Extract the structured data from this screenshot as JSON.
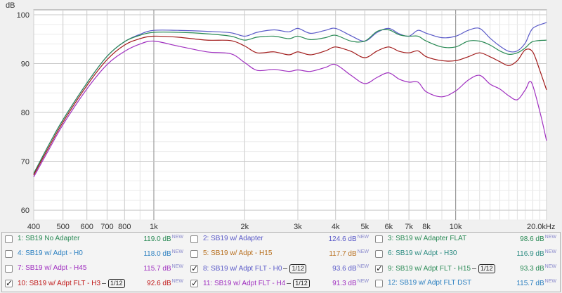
{
  "chart_data": {
    "type": "line",
    "ylabel": "dB",
    "xscale": "log",
    "xlim": [
      400,
      20000
    ],
    "ylim": [
      58,
      101
    ],
    "x_ticks": [
      400,
      500,
      600,
      700,
      800,
      1000,
      2000,
      3000,
      4000,
      5000,
      6000,
      7000,
      8000,
      10000,
      20000
    ],
    "x_tick_labels": [
      "400",
      "500",
      "600",
      "700",
      "800",
      "1k",
      "2k",
      "3k",
      "4k",
      "5k",
      "6k",
      "7k",
      "8k",
      "10k",
      "20.0kHz"
    ],
    "y_ticks": [
      60,
      70,
      80,
      90,
      100
    ],
    "y_tick_labels": [
      "60",
      "70",
      "80",
      "90",
      "100"
    ],
    "grid": true,
    "series": [
      {
        "name": "SB19 w/ Adapter",
        "color": "#5a5ac8",
        "points": [
          [
            400,
            67.5
          ],
          [
            450,
            73.5
          ],
          [
            500,
            78.5
          ],
          [
            600,
            86
          ],
          [
            700,
            91.5
          ],
          [
            800,
            94.5
          ],
          [
            900,
            96
          ],
          [
            1000,
            96.8
          ],
          [
            1200,
            96.8
          ],
          [
            1500,
            96.6
          ],
          [
            1800,
            96.3
          ],
          [
            2000,
            95.6
          ],
          [
            2200,
            96.4
          ],
          [
            2500,
            96.9
          ],
          [
            2800,
            96.5
          ],
          [
            3000,
            97.2
          ],
          [
            3300,
            96.2
          ],
          [
            3700,
            96.8
          ],
          [
            4000,
            97.2
          ],
          [
            4500,
            95.7
          ],
          [
            5000,
            94.6
          ],
          [
            5500,
            96.4
          ],
          [
            6000,
            97.2
          ],
          [
            6500,
            96.1
          ],
          [
            7000,
            95.6
          ],
          [
            7500,
            96.8
          ],
          [
            8000,
            96.2
          ],
          [
            9000,
            95.3
          ],
          [
            10000,
            95.6
          ],
          [
            11000,
            96.8
          ],
          [
            12000,
            97.2
          ],
          [
            13000,
            95.2
          ],
          [
            14000,
            93.6
          ],
          [
            15000,
            92.5
          ],
          [
            16000,
            92.6
          ],
          [
            17000,
            94.2
          ],
          [
            18000,
            97.2
          ],
          [
            20000,
            98.4
          ]
        ]
      },
      {
        "name": "SB19 w/ Adpt - H0",
        "color": "#2a8a55",
        "points": [
          [
            400,
            67.5
          ],
          [
            450,
            73.5
          ],
          [
            500,
            78.5
          ],
          [
            600,
            86
          ],
          [
            700,
            91.5
          ],
          [
            800,
            94.5
          ],
          [
            900,
            95.8
          ],
          [
            1000,
            96.4
          ],
          [
            1200,
            96.4
          ],
          [
            1500,
            96.1
          ],
          [
            1800,
            95.6
          ],
          [
            2000,
            94.8
          ],
          [
            2200,
            95.4
          ],
          [
            2500,
            95.6
          ],
          [
            2800,
            95.1
          ],
          [
            3000,
            95.6
          ],
          [
            3300,
            94.9
          ],
          [
            3700,
            95.3
          ],
          [
            4000,
            95.8
          ],
          [
            4500,
            94.6
          ],
          [
            5000,
            94.6
          ],
          [
            5500,
            96.6
          ],
          [
            6000,
            96.9
          ],
          [
            6500,
            95.9
          ],
          [
            7000,
            95.6
          ],
          [
            7500,
            95.6
          ],
          [
            8000,
            94.6
          ],
          [
            9000,
            93.4
          ],
          [
            10000,
            93.4
          ],
          [
            11000,
            94.6
          ],
          [
            12000,
            94.6
          ],
          [
            13000,
            93.8
          ],
          [
            14000,
            92.6
          ],
          [
            15000,
            91.9
          ],
          [
            16000,
            92.2
          ],
          [
            17000,
            93.2
          ],
          [
            18000,
            94.5
          ],
          [
            20000,
            94.8
          ]
        ]
      },
      {
        "name": "SB19 w/ Adpt FLT - H3",
        "color": "#a01818",
        "points": [
          [
            400,
            67.2
          ],
          [
            450,
            73
          ],
          [
            500,
            78
          ],
          [
            600,
            85.5
          ],
          [
            700,
            90.8
          ],
          [
            800,
            93.8
          ],
          [
            900,
            95.1
          ],
          [
            1000,
            95.6
          ],
          [
            1200,
            95.4
          ],
          [
            1500,
            94.8
          ],
          [
            1800,
            94.7
          ],
          [
            2000,
            93.6
          ],
          [
            2200,
            92.2
          ],
          [
            2500,
            92.4
          ],
          [
            2800,
            91.8
          ],
          [
            3000,
            92.4
          ],
          [
            3300,
            91.8
          ],
          [
            3700,
            92.6
          ],
          [
            4000,
            93.4
          ],
          [
            4500,
            92.5
          ],
          [
            5000,
            91.2
          ],
          [
            5500,
            92.6
          ],
          [
            6000,
            93.4
          ],
          [
            6500,
            92.5
          ],
          [
            7000,
            92.2
          ],
          [
            7500,
            92.6
          ],
          [
            8000,
            91.4
          ],
          [
            9000,
            90.6
          ],
          [
            10000,
            90.6
          ],
          [
            11000,
            91.4
          ],
          [
            12000,
            92.2
          ],
          [
            13000,
            91.4
          ],
          [
            14000,
            90.4
          ],
          [
            15000,
            89.6
          ],
          [
            16000,
            90.6
          ],
          [
            17000,
            92.8
          ],
          [
            18000,
            92.4
          ],
          [
            19000,
            88.6
          ],
          [
            20000,
            84.6
          ]
        ]
      },
      {
        "name": "SB19 w/ Adpt FLT - H4",
        "color": "#a030c0",
        "points": [
          [
            400,
            66.8
          ],
          [
            450,
            72.5
          ],
          [
            500,
            77.5
          ],
          [
            600,
            84.8
          ],
          [
            700,
            89.8
          ],
          [
            800,
            92.5
          ],
          [
            900,
            94
          ],
          [
            1000,
            94.6
          ],
          [
            1200,
            93.6
          ],
          [
            1500,
            92.4
          ],
          [
            1800,
            92
          ],
          [
            2000,
            90.2
          ],
          [
            2200,
            88.6
          ],
          [
            2500,
            88.8
          ],
          [
            2800,
            88.4
          ],
          [
            3000,
            88.7
          ],
          [
            3300,
            88.4
          ],
          [
            3700,
            89.2
          ],
          [
            4000,
            89.8
          ],
          [
            4500,
            87.6
          ],
          [
            5000,
            85.9
          ],
          [
            5500,
            87.2
          ],
          [
            6000,
            88.1
          ],
          [
            6500,
            86.8
          ],
          [
            7000,
            86.2
          ],
          [
            7500,
            86.2
          ],
          [
            8000,
            84.2
          ],
          [
            9000,
            83.2
          ],
          [
            10000,
            84.4
          ],
          [
            11000,
            86.6
          ],
          [
            12000,
            87.6
          ],
          [
            13000,
            85.8
          ],
          [
            14000,
            84.8
          ],
          [
            15000,
            83.4
          ],
          [
            16000,
            82.6
          ],
          [
            17000,
            84.6
          ],
          [
            17800,
            86.2
          ],
          [
            19000,
            80.2
          ],
          [
            20000,
            74.2
          ]
        ]
      }
    ]
  },
  "legend": {
    "rows": [
      [
        {
          "label": "1: SB19 No Adapter",
          "value": "119.0 dB",
          "badge": "NEW",
          "color": "#2a8a55",
          "checked": false,
          "smoothing": ""
        },
        {
          "label": "2: SB19 w/ Adapter",
          "value": "124.6 dB",
          "badge": "NEW",
          "color": "#5a5ac8",
          "checked": false,
          "smoothing": ""
        },
        {
          "label": "3: SB19 w/ Adapter FLAT",
          "value": "98.6 dB",
          "badge": "NEW",
          "color": "#2a8a55",
          "checked": false,
          "smoothing": ""
        }
      ],
      [
        {
          "label": "4: SB19 w/ Adpt - H0",
          "value": "118.0 dB",
          "badge": "NEW",
          "color": "#2a7fc0",
          "checked": false,
          "smoothing": ""
        },
        {
          "label": "5: SB19 w/ Adpt - H15",
          "value": "117.7 dB",
          "badge": "NEW",
          "color": "#b87020",
          "checked": false,
          "smoothing": ""
        },
        {
          "label": "6: SB19 w/ Adpt - H30",
          "value": "116.9 dB",
          "badge": "NEW",
          "color": "#2a8a80",
          "checked": false,
          "smoothing": ""
        }
      ],
      [
        {
          "label": "7: SB19 w/ Adpt - H45",
          "value": "115.7 dB",
          "badge": "NEW",
          "color": "#a030c0",
          "checked": false,
          "smoothing": ""
        },
        {
          "label": "8: SB19 w/ Adpt FLT - H0",
          "value": "93.6 dB",
          "badge": "NEW",
          "color": "#5a5ac8",
          "checked": true,
          "smoothing": "1/12"
        },
        {
          "label": "9: SB19 w/ Adpt FLT - H15",
          "value": "93.3 dB",
          "badge": "NEW",
          "color": "#2a8a55",
          "checked": true,
          "smoothing": "1/12"
        }
      ],
      [
        {
          "label": "10: SB19 w/ Adpt FLT - H3",
          "value": "92.6 dB",
          "badge": "NEW",
          "color": "#c01818",
          "checked": true,
          "smoothing": "1/12"
        },
        {
          "label": "11: SB19 w/ Adpt FLT - H4",
          "value": "91.3 dB",
          "badge": "NEW",
          "color": "#a030c0",
          "checked": true,
          "smoothing": "1/12"
        },
        {
          "label": "12: SB19 w/ Adpt FLT DST",
          "value": "115.7 dB",
          "badge": "NEW",
          "color": "#2a7fc0",
          "checked": false,
          "smoothing": ""
        }
      ]
    ]
  }
}
